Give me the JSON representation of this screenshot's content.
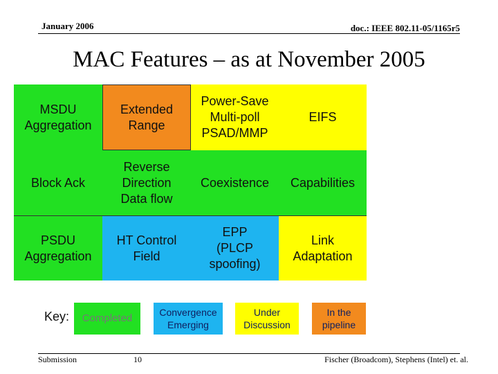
{
  "header": {
    "date": "January 2006",
    "doc": "doc.: IEEE 802.11-05/1165r5"
  },
  "title": "MAC Features – as at November 2005",
  "grid": {
    "rows": [
      [
        "MSDU\nAggregation",
        "Extended\nRange",
        "Power-Save\nMulti-poll\nPSAD/MMP",
        "EIFS"
      ],
      [
        "Block Ack",
        "Reverse\nDirection\nData flow",
        "Coexistence",
        "Capabilities"
      ],
      [
        "PSDU\nAggregation",
        "HT Control\nField",
        "EPP\n(PLCP\nspoofing)",
        "Link\nAdaptation"
      ]
    ]
  },
  "key": {
    "label": "Key:",
    "items": [
      "Completed",
      "Convergence\nEmerging",
      "Under\nDiscussion",
      "In the\npipeline"
    ]
  },
  "footer": {
    "left": "Submission",
    "page": "10",
    "right": "Fischer (Broadcom), Stephens (Intel) et. al."
  }
}
